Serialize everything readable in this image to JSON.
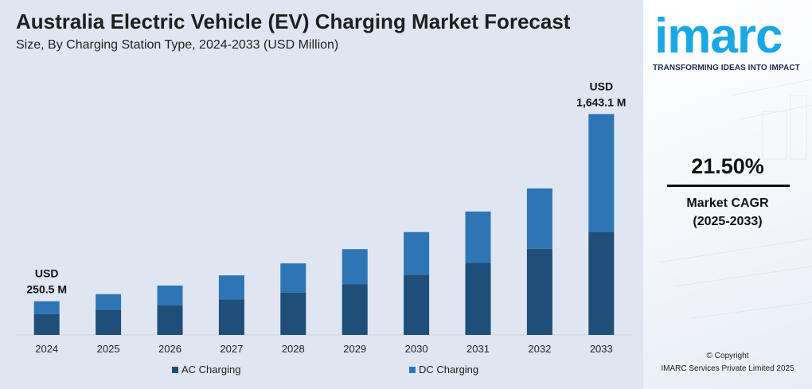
{
  "title": "Australia Electric Vehicle (EV) Charging Market Forecast",
  "subtitle": "Size, By Charging Station Type, 2024-2033 (USD Million)",
  "chart_data": {
    "type": "bar",
    "stacked": true,
    "categories": [
      "2024",
      "2025",
      "2026",
      "2027",
      "2028",
      "2029",
      "2030",
      "2031",
      "2032",
      "2033"
    ],
    "series": [
      {
        "name": "AC Charging",
        "color": "#1f4e79",
        "values": [
          156,
          186,
          221,
          263,
          314,
          376,
          448,
          536,
          641,
          768
        ]
      },
      {
        "name": "DC Charging",
        "color": "#2e75b6",
        "values": [
          94.5,
          117,
          146,
          180,
          218,
          262,
          317,
          382,
          449,
          875.1
        ]
      }
    ],
    "totals": [
      250.5,
      null,
      null,
      null,
      null,
      null,
      null,
      null,
      null,
      1643.1
    ],
    "annotations": [
      {
        "category": "2024",
        "line1": "USD",
        "line2": "250.5 M"
      },
      {
        "category": "2033",
        "line1": "USD",
        "line2": "1,643.1 M"
      }
    ],
    "ylim": [
      0,
      1900
    ],
    "grid": false,
    "legend_position": "bottom"
  },
  "legend": [
    {
      "label": "AC Charging",
      "color": "#1f4e79"
    },
    {
      "label": "DC Charging",
      "color": "#2e75b6"
    }
  ],
  "brand": {
    "logo_text": "imarc",
    "logo_color": "#1aa7e6",
    "tagline": "TRANSFORMING IDEAS INTO IMPACT"
  },
  "cagr": {
    "value": "21.50%",
    "label": "Market CAGR",
    "period": "(2025-2033)"
  },
  "footer": {
    "copyright": "© Copyright",
    "company": "IMARC Services Private Limited 2025"
  }
}
